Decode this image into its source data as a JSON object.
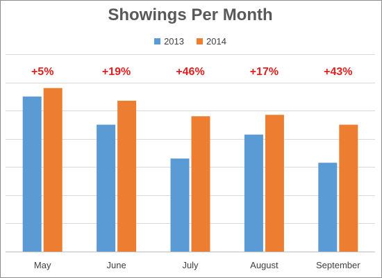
{
  "chart_data": {
    "type": "bar",
    "title": "Showings Per Month",
    "categories": [
      "May",
      "June",
      "July",
      "August",
      "September"
    ],
    "series": [
      {
        "name": "2013",
        "color": "#5b9bd5",
        "values": [
          110,
          90,
          66,
          83,
          63
        ]
      },
      {
        "name": "2014",
        "color": "#ed7d31",
        "values": [
          116,
          107,
          96,
          97,
          90
        ]
      }
    ],
    "annotations": [
      "+5%",
      "+19%",
      "+46%",
      "+17%",
      "+43%"
    ],
    "annotation_color": "#e0201f",
    "ylim": [
      0,
      140
    ],
    "y_gridlines": [
      0,
      20,
      40,
      60,
      80,
      100,
      120,
      140
    ],
    "grid": true,
    "y_tick_labels_shown": false,
    "legend_position": "top-center",
    "xlabel": "",
    "ylabel": ""
  }
}
